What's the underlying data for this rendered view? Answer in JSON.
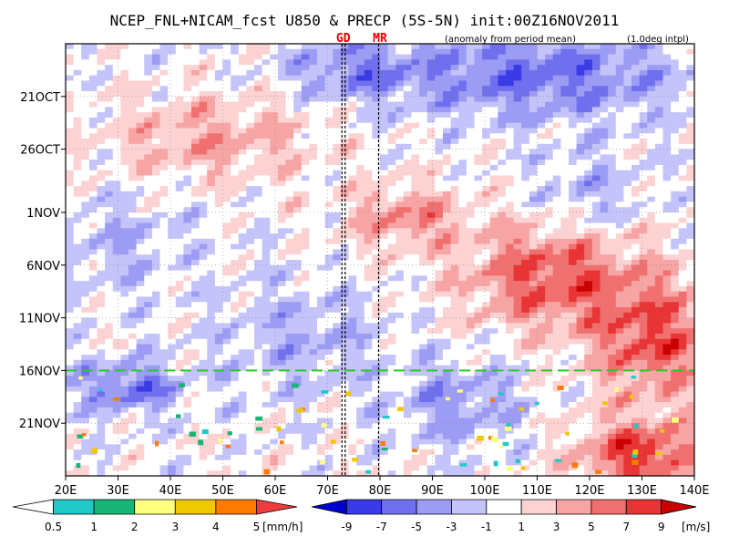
{
  "chart_data": {
    "type": "heatmap",
    "title": "NCEP_FNL+NICAM_fcst U850 & PRECP (5S-5N) init:00Z16NOV2011",
    "subtitle": "(anomaly from period mean)",
    "note": "(1.0deg intpl)",
    "x_axis": {
      "range": [
        20,
        140
      ],
      "ticks": [
        {
          "value": 20,
          "label": "20E"
        },
        {
          "value": 30,
          "label": "30E"
        },
        {
          "value": 40,
          "label": "40E"
        },
        {
          "value": 50,
          "label": "50E"
        },
        {
          "value": 60,
          "label": "60E"
        },
        {
          "value": 70,
          "label": "70E"
        },
        {
          "value": 80,
          "label": "80E"
        },
        {
          "value": 90,
          "label": "90E"
        },
        {
          "value": 100,
          "label": "100E"
        },
        {
          "value": 110,
          "label": "110E"
        },
        {
          "value": 120,
          "label": "120E"
        },
        {
          "value": 130,
          "label": "130E"
        },
        {
          "value": 140,
          "label": "140E"
        }
      ]
    },
    "y_axis": {
      "range_days": [
        0,
        41
      ],
      "ticks": [
        {
          "day": 5,
          "label": "21OCT"
        },
        {
          "day": 10,
          "label": "26OCT"
        },
        {
          "day": 16,
          "label": "1NOV"
        },
        {
          "day": 21,
          "label": "6NOV"
        },
        {
          "day": 26,
          "label": "11NOV"
        },
        {
          "day": 31,
          "label": "16NOV"
        },
        {
          "day": 36,
          "label": "21NOV"
        }
      ]
    },
    "markers": [
      {
        "label": "GD",
        "lon": 73
      },
      {
        "label": "MR",
        "lon": 80
      }
    ],
    "init_line": {
      "label": "16NOV",
      "day": 31,
      "color": "#22cc22"
    },
    "precip_colorbar": {
      "unit": "[mm/h]",
      "levels": [
        "0.5",
        "1",
        "2",
        "3",
        "4",
        "5"
      ],
      "colors": [
        "#ffffff",
        "#20c8c8",
        "#18b478",
        "#ffff80",
        "#f0c800",
        "#ff7a00",
        "#f03c3c"
      ]
    },
    "u850_colorbar": {
      "unit": "[m/s]",
      "levels": [
        "-9",
        "-7",
        "-5",
        "-3",
        "-1",
        "1",
        "3",
        "5",
        "7",
        "9"
      ],
      "colors": [
        "#0000d0",
        "#3a3ae6",
        "#7070ee",
        "#9c9cf4",
        "#c4c4fa",
        "#ffffff",
        "#fcd2d2",
        "#f7a4a4",
        "#f07070",
        "#e83434",
        "#c80000"
      ]
    }
  }
}
